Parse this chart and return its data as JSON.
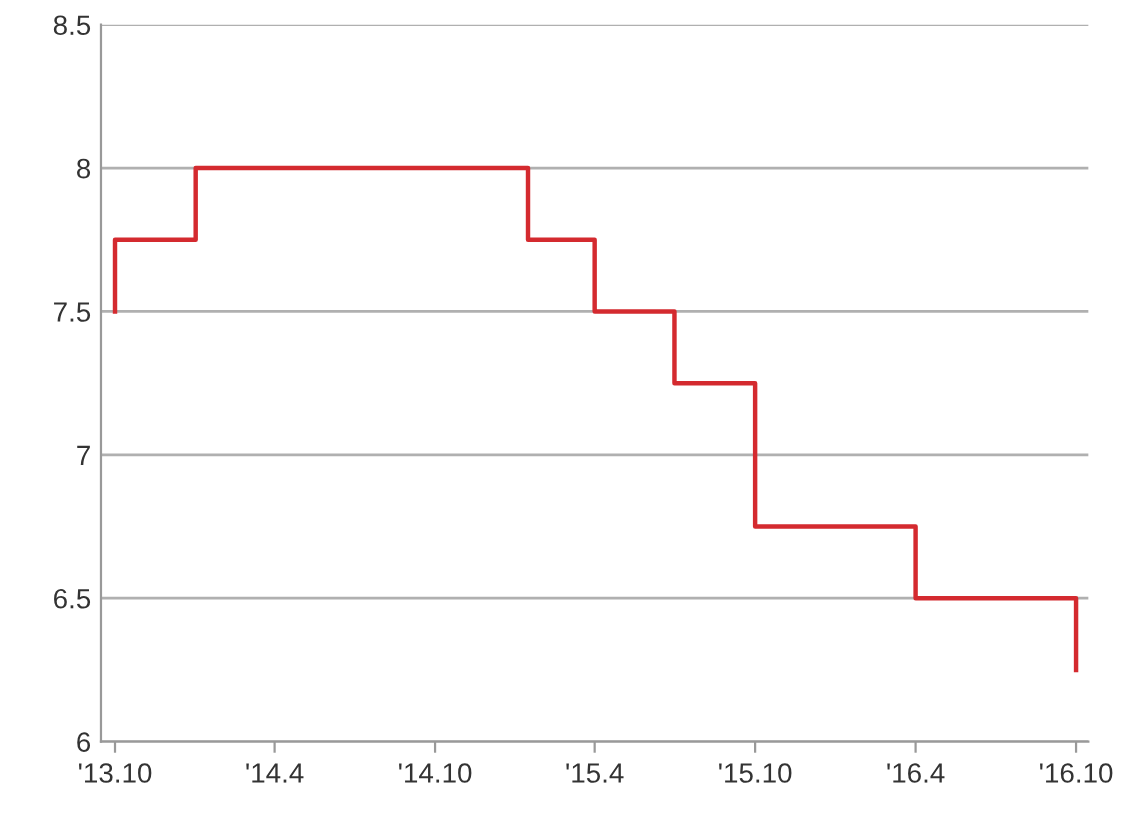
{
  "chart_data": {
    "type": "step",
    "x": [
      "2013-10",
      "2013-10",
      "2014-01",
      "2015-01-15",
      "2015-04",
      "2015-07",
      "2015-10",
      "2016-04",
      "2016-10"
    ],
    "series": [
      {
        "color": "#d42a2f",
        "values": [
          7.5,
          7.75,
          8,
          7.75,
          7.5,
          7.25,
          6.75,
          6.5,
          6.25
        ]
      }
    ],
    "xlim": [
      "2013-09-15",
      "2016-10-15"
    ],
    "xticks": [
      {
        "value": "2013-10",
        "label": "'13.10"
      },
      {
        "value": "2014-04",
        "label": "'14.4"
      },
      {
        "value": "2014-10",
        "label": "'14.10"
      },
      {
        "value": "2015-04",
        "label": "'15.4"
      },
      {
        "value": "2015-10",
        "label": "'15.10"
      },
      {
        "value": "2016-04",
        "label": "'16.4"
      },
      {
        "value": "2016-10",
        "label": "'16.10"
      }
    ],
    "ylim": [
      6,
      8.5
    ],
    "yticks": [
      6,
      6.5,
      7,
      7.5,
      8,
      8.5
    ],
    "grid": "y"
  }
}
